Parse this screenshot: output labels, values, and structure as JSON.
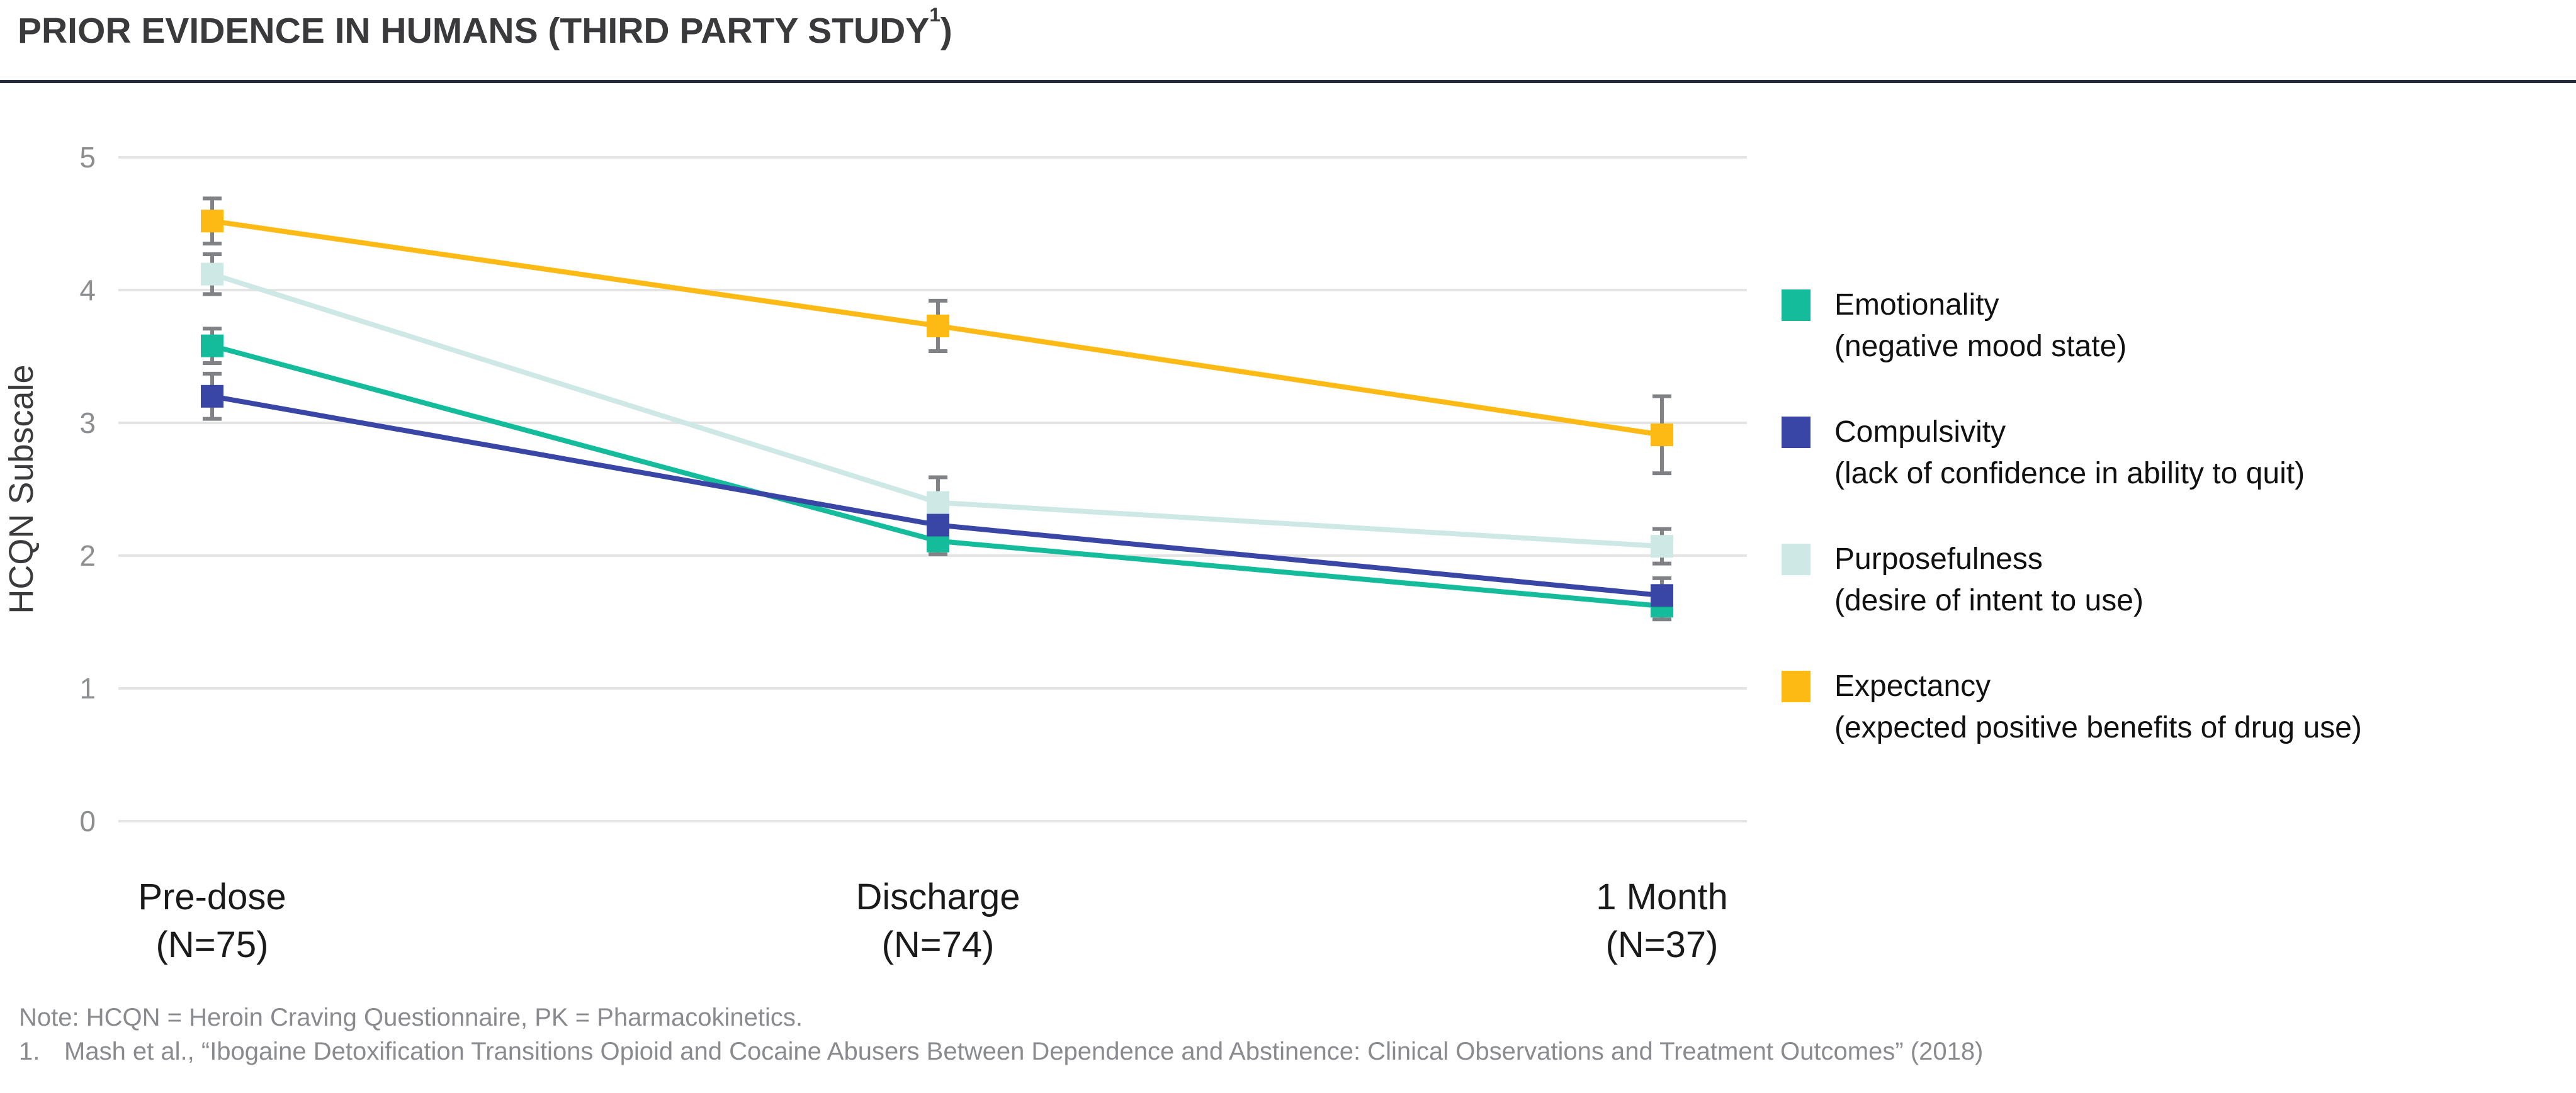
{
  "header": {
    "title_prefix": "PRIOR EVIDENCE IN HUMANS (THIRD PARTY STUDY",
    "title_sup": "1",
    "title_suffix": ")"
  },
  "chart_data": {
    "type": "line",
    "title": "",
    "xlabel": "",
    "ylabel": "HCQN Subscale",
    "ylim": [
      0,
      5
    ],
    "yticks": [
      0,
      1,
      2,
      3,
      4,
      5
    ],
    "grid": true,
    "legend_position": "right",
    "marker": "square",
    "error_bars": true,
    "categories": [
      {
        "label": "Pre-dose",
        "sublabel": "(N=75)"
      },
      {
        "label": "Discharge",
        "sublabel": "(N=74)"
      },
      {
        "label": "1 Month",
        "sublabel": "(N=37)"
      }
    ],
    "series": [
      {
        "name": "Emotionality",
        "desc": "(negative mood state)",
        "color": "#15bc9c",
        "values": [
          3.58,
          2.11,
          1.62
        ],
        "errors": [
          0.13,
          0.1,
          0.1
        ]
      },
      {
        "name": "Compulsivity",
        "desc": "(lack of confidence in ability to quit)",
        "color": "#3a46a5",
        "values": [
          3.2,
          2.23,
          1.7
        ],
        "errors": [
          0.17,
          0.13,
          0.13
        ]
      },
      {
        "name": "Purposefulness",
        "desc": "(desire of intent to use)",
        "color": "#cde8e5",
        "values": [
          4.12,
          2.4,
          2.07
        ],
        "errors": [
          0.15,
          0.19,
          0.13
        ]
      },
      {
        "name": "Expectancy",
        "desc": "(expected positive benefits of drug use)",
        "color": "#fdb914",
        "values": [
          4.52,
          3.73,
          2.91
        ],
        "errors": [
          0.17,
          0.19,
          0.29
        ]
      }
    ]
  },
  "footnotes": {
    "note": "Note: HCQN = Heroin Craving Questionnaire, PK = Pharmacokinetics.",
    "citation_num": "1.",
    "citation_text": "Mash et al., “Ibogaine Detoxification Transitions Opioid and Cocaine Abusers Between Dependence and Abstinence: Clinical Observations and Treatment Outcomes” (2018)"
  },
  "colors": {
    "title": "#3a3a3c",
    "divider": "#262d3f",
    "gridline": "#e4e4e4",
    "error_bar": "#808285",
    "tick_label": "#8c8e90",
    "axis_label": "#3b3b3d",
    "x_label": "#1a1a1a",
    "footnote": "#8a8b8e"
  }
}
